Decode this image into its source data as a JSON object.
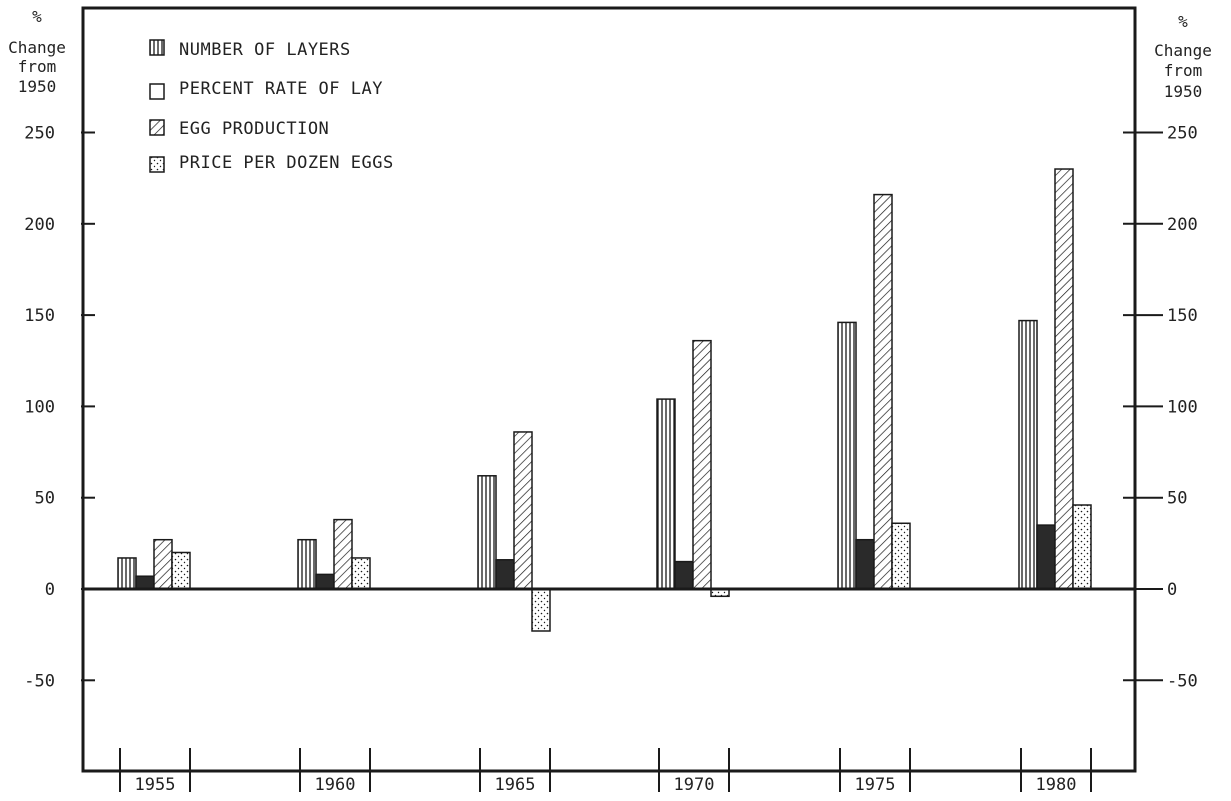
{
  "chart_data": {
    "type": "bar",
    "left_axis_title": [
      "%",
      "Change",
      "from",
      "1950"
    ],
    "right_axis_title": [
      "%",
      "Change",
      "from",
      "1950"
    ],
    "y_ticks": [
      250,
      200,
      150,
      100,
      50,
      0,
      -50
    ],
    "ylim": [
      -100,
      265
    ],
    "categories": [
      "1955",
      "1960",
      "1965",
      "1970",
      "1975",
      "1980"
    ],
    "series": [
      {
        "name": "NUMBER OF LAYERS",
        "pattern": "vertical-lines",
        "values": [
          17,
          27,
          62,
          104,
          146,
          147
        ]
      },
      {
        "name": "PERCENT RATE OF LAY",
        "pattern": "solid",
        "values": [
          7,
          8,
          16,
          15,
          27,
          35
        ]
      },
      {
        "name": "EGG PRODUCTION",
        "pattern": "diagonal-lines",
        "values": [
          27,
          38,
          86,
          136,
          216,
          230
        ]
      },
      {
        "name": "PRICE PER DOZEN EGGS",
        "pattern": "dots",
        "values": [
          20,
          17,
          -23,
          -4,
          36,
          46
        ]
      }
    ],
    "legend": "top-left",
    "grid": false,
    "colors": {
      "ink": "#1a1a1a",
      "background": "#ffffff"
    }
  }
}
